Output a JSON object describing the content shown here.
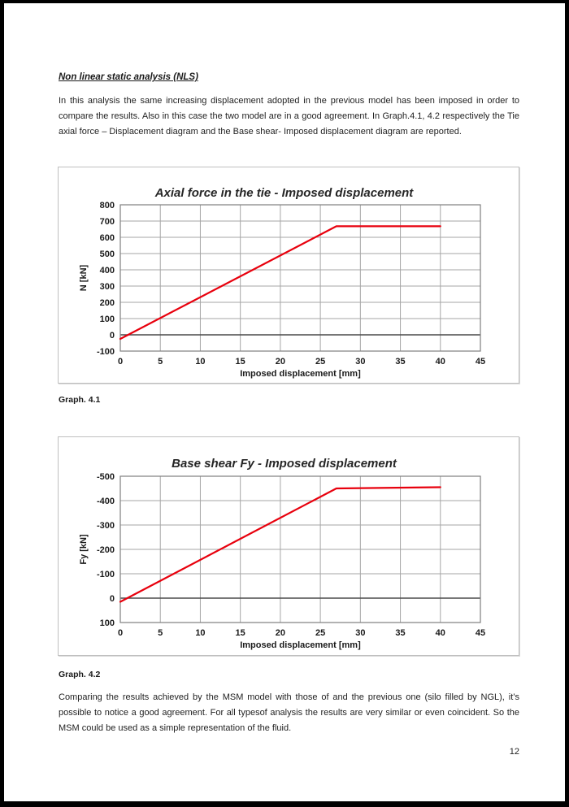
{
  "page": {
    "heading": "Non linear static analysis (NLS)",
    "para1": "In this analysis the same increasing displacement adopted in the previous model has been imposed in order to compare the results. Also in this case the two model are in a good agreement. In Graph.4.1, 4.2 respectively  the Tie axial force – Displacement diagram and the Base shear- Imposed displacement diagram are reported.",
    "caption1": "Graph. 4.1",
    "caption2": "Graph. 4.2",
    "para2": "Comparing the results achieved by the MSM model with those  of and the previous one (silo filled by NGL), it’s possible to notice a good agreement. For all typesof analysis the results are very similar or even coincident.  So the MSM could be used as a simple representation of the fluid.",
    "page_number": "12"
  },
  "colors": {
    "line_red": "#e8000d",
    "gridline": "#a6a6a6",
    "plot_border": "#7f7f7f",
    "zero_line": "#4a4a4a",
    "chart_box_border": "#bfbfbf"
  },
  "chart_data": [
    {
      "type": "line",
      "title": "Axial force in the tie - Imposed displacement",
      "xlabel": "Imposed displacement [mm]",
      "ylabel": "N [kN]",
      "xlim": [
        0,
        45
      ],
      "x_ticks": [
        0,
        5,
        10,
        15,
        20,
        25,
        30,
        35,
        40,
        45
      ],
      "y_ticks": [
        800,
        700,
        600,
        500,
        400,
        300,
        200,
        100,
        0,
        -100
      ],
      "y_top": 800,
      "y_bottom": -100,
      "grid": true,
      "legend": "none",
      "line_color": "#e8000d",
      "series": [
        {
          "name": "N",
          "points": [
            [
              0,
              -25
            ],
            [
              27,
              668
            ],
            [
              40,
              668
            ]
          ]
        }
      ]
    },
    {
      "type": "line",
      "title": "Base shear Fy - Imposed displacement",
      "xlabel": "Imposed displacement [mm]",
      "ylabel": "Fy [kN]",
      "xlim": [
        0,
        45
      ],
      "x_ticks": [
        0,
        5,
        10,
        15,
        20,
        25,
        30,
        35,
        40,
        45
      ],
      "y_ticks": [
        -500,
        -400,
        -300,
        -200,
        -100,
        0,
        100
      ],
      "y_top": -500,
      "y_bottom": 100,
      "y_axis_inverted": true,
      "grid": true,
      "legend": "none",
      "line_color": "#e8000d",
      "series": [
        {
          "name": "Fy",
          "points": [
            [
              0,
              15
            ],
            [
              27,
              -450
            ],
            [
              40,
              -455
            ]
          ]
        }
      ]
    }
  ]
}
